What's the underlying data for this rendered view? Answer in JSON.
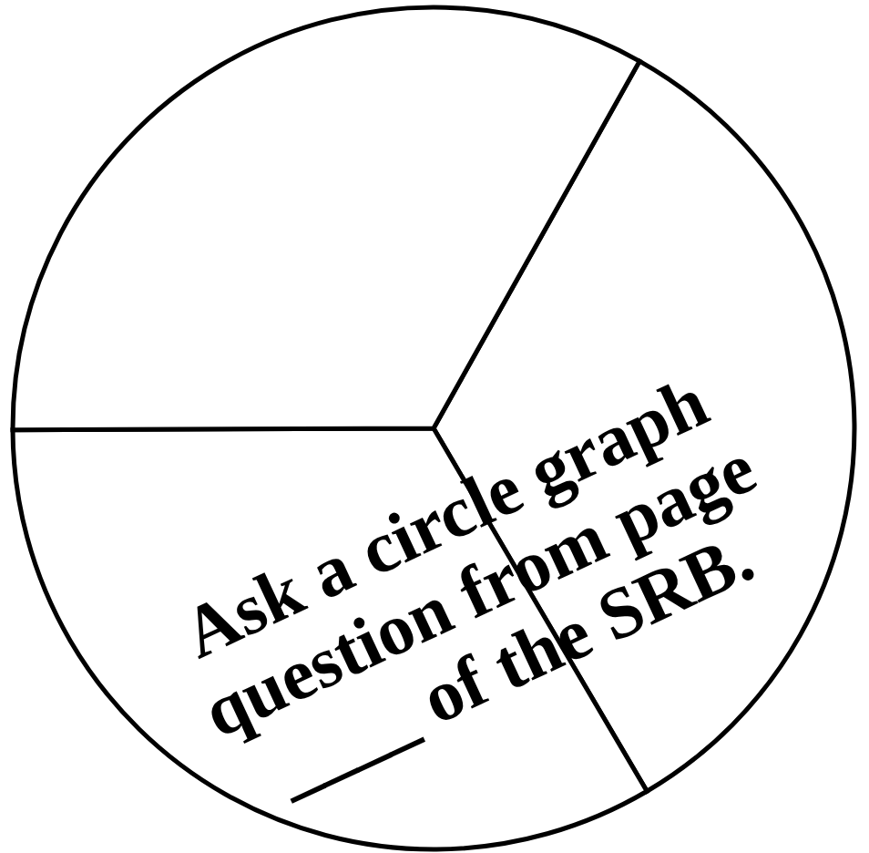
{
  "chart_data": {
    "type": "pie",
    "categories": [
      null,
      null,
      null
    ],
    "values": [
      33.4,
      33.4,
      33.2
    ],
    "colors": [
      "#ffffff",
      "#ffffff",
      "#ffffff"
    ],
    "annotations": [
      "Ask a circle graph\nquestion from page\n____ of  the SRB."
    ]
  }
}
